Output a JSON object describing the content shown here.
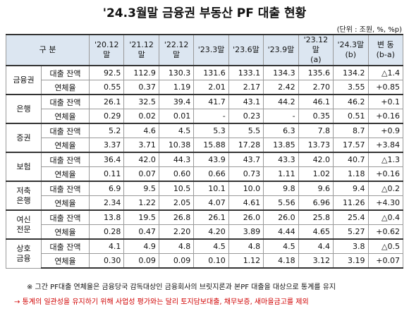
{
  "header": {
    "title": "'24.3월말 금융권 부동산 PF 대출 현황",
    "unit": "(단위 : 조원, %, %p)"
  },
  "table": {
    "columns": [
      "구  분",
      "'20.12말",
      "'21.12말",
      "'22.12말",
      "'23.3말",
      "'23.6말",
      "'23.9말",
      "'23.12말\n(a)",
      "'24.3말\n(b)",
      "변 동\n(b-a)"
    ],
    "groups": [
      {
        "label": "금융권",
        "rows": [
          {
            "label": "대출 잔액",
            "values": [
              "92.5",
              "112.9",
              "130.3",
              "131.6",
              "133.1",
              "134.3",
              "135.6",
              "134.2",
              "△1.4"
            ]
          },
          {
            "label": "연체율",
            "values": [
              "0.55",
              "0.37",
              "1.19",
              "2.01",
              "2.17",
              "2.42",
              "2.70",
              "3.55",
              "+0.85"
            ]
          }
        ]
      },
      {
        "label": "은행",
        "rows": [
          {
            "label": "대출 잔액",
            "values": [
              "26.1",
              "32.5",
              "39.4",
              "41.7",
              "43.1",
              "44.2",
              "46.1",
              "46.2",
              "+0.1"
            ]
          },
          {
            "label": "연체율",
            "values": [
              "0.29",
              "0.02",
              "0.01",
              "-",
              "0.23",
              "-",
              "0.35",
              "0.51",
              "+0.16"
            ]
          }
        ]
      },
      {
        "label": "증권",
        "rows": [
          {
            "label": "대출 잔액",
            "values": [
              "5.2",
              "4.6",
              "4.5",
              "5.3",
              "5.5",
              "6.3",
              "7.8",
              "8.7",
              "+0.9"
            ]
          },
          {
            "label": "연체율",
            "values": [
              "3.37",
              "3.71",
              "10.38",
              "15.88",
              "17.28",
              "13.85",
              "13.73",
              "17.57",
              "+3.84"
            ]
          }
        ]
      },
      {
        "label": "보험",
        "rows": [
          {
            "label": "대출 잔액",
            "values": [
              "36.4",
              "42.0",
              "44.3",
              "43.9",
              "43.7",
              "43.3",
              "42.0",
              "40.7",
              "△1.3"
            ]
          },
          {
            "label": "연체율",
            "values": [
              "0.11",
              "0.07",
              "0.60",
              "0.66",
              "0.73",
              "1.11",
              "1.02",
              "1.18",
              "+0.16"
            ]
          }
        ]
      },
      {
        "label": "저축\n은행",
        "rows": [
          {
            "label": "대출 잔액",
            "values": [
              "6.9",
              "9.5",
              "10.5",
              "10.1",
              "10.0",
              "9.8",
              "9.6",
              "9.4",
              "△0.2"
            ]
          },
          {
            "label": "연체율",
            "values": [
              "2.34",
              "1.22",
              "2.05",
              "4.07",
              "4.61",
              "5.56",
              "6.96",
              "11.26",
              "+4.30"
            ]
          }
        ]
      },
      {
        "label": "여신\n전문",
        "rows": [
          {
            "label": "대출 잔액",
            "values": [
              "13.8",
              "19.5",
              "26.8",
              "26.1",
              "26.0",
              "26.0",
              "25.8",
              "25.4",
              "△0.4"
            ]
          },
          {
            "label": "연체율",
            "values": [
              "0.28",
              "0.47",
              "2.20",
              "4.20",
              "3.89",
              "4.44",
              "4.65",
              "5.27",
              "+0.62"
            ]
          }
        ]
      },
      {
        "label": "상호\n금융",
        "rows": [
          {
            "label": "대출 잔액",
            "values": [
              "4.1",
              "4.9",
              "4.8",
              "4.5",
              "4.8",
              "4.5",
              "4.4",
              "3.8",
              "△0.5"
            ]
          },
          {
            "label": "연체율",
            "values": [
              "0.30",
              "0.09",
              "0.09",
              "0.10",
              "1.12",
              "4.18",
              "3.12",
              "3.19",
              "+0.07"
            ]
          }
        ]
      }
    ]
  },
  "notes": [
    "※ 그간 PF대출 연체율은 금융당국 감독대상인 금융회사의 브릿지론과 본PF 대출을 대상으로 통계를 유지",
    "→ 통계의 일관성을 유지하기 위해 사업성 평가와는 달리 토지담보대출, 채무보증, 새마을금고를 제외"
  ]
}
